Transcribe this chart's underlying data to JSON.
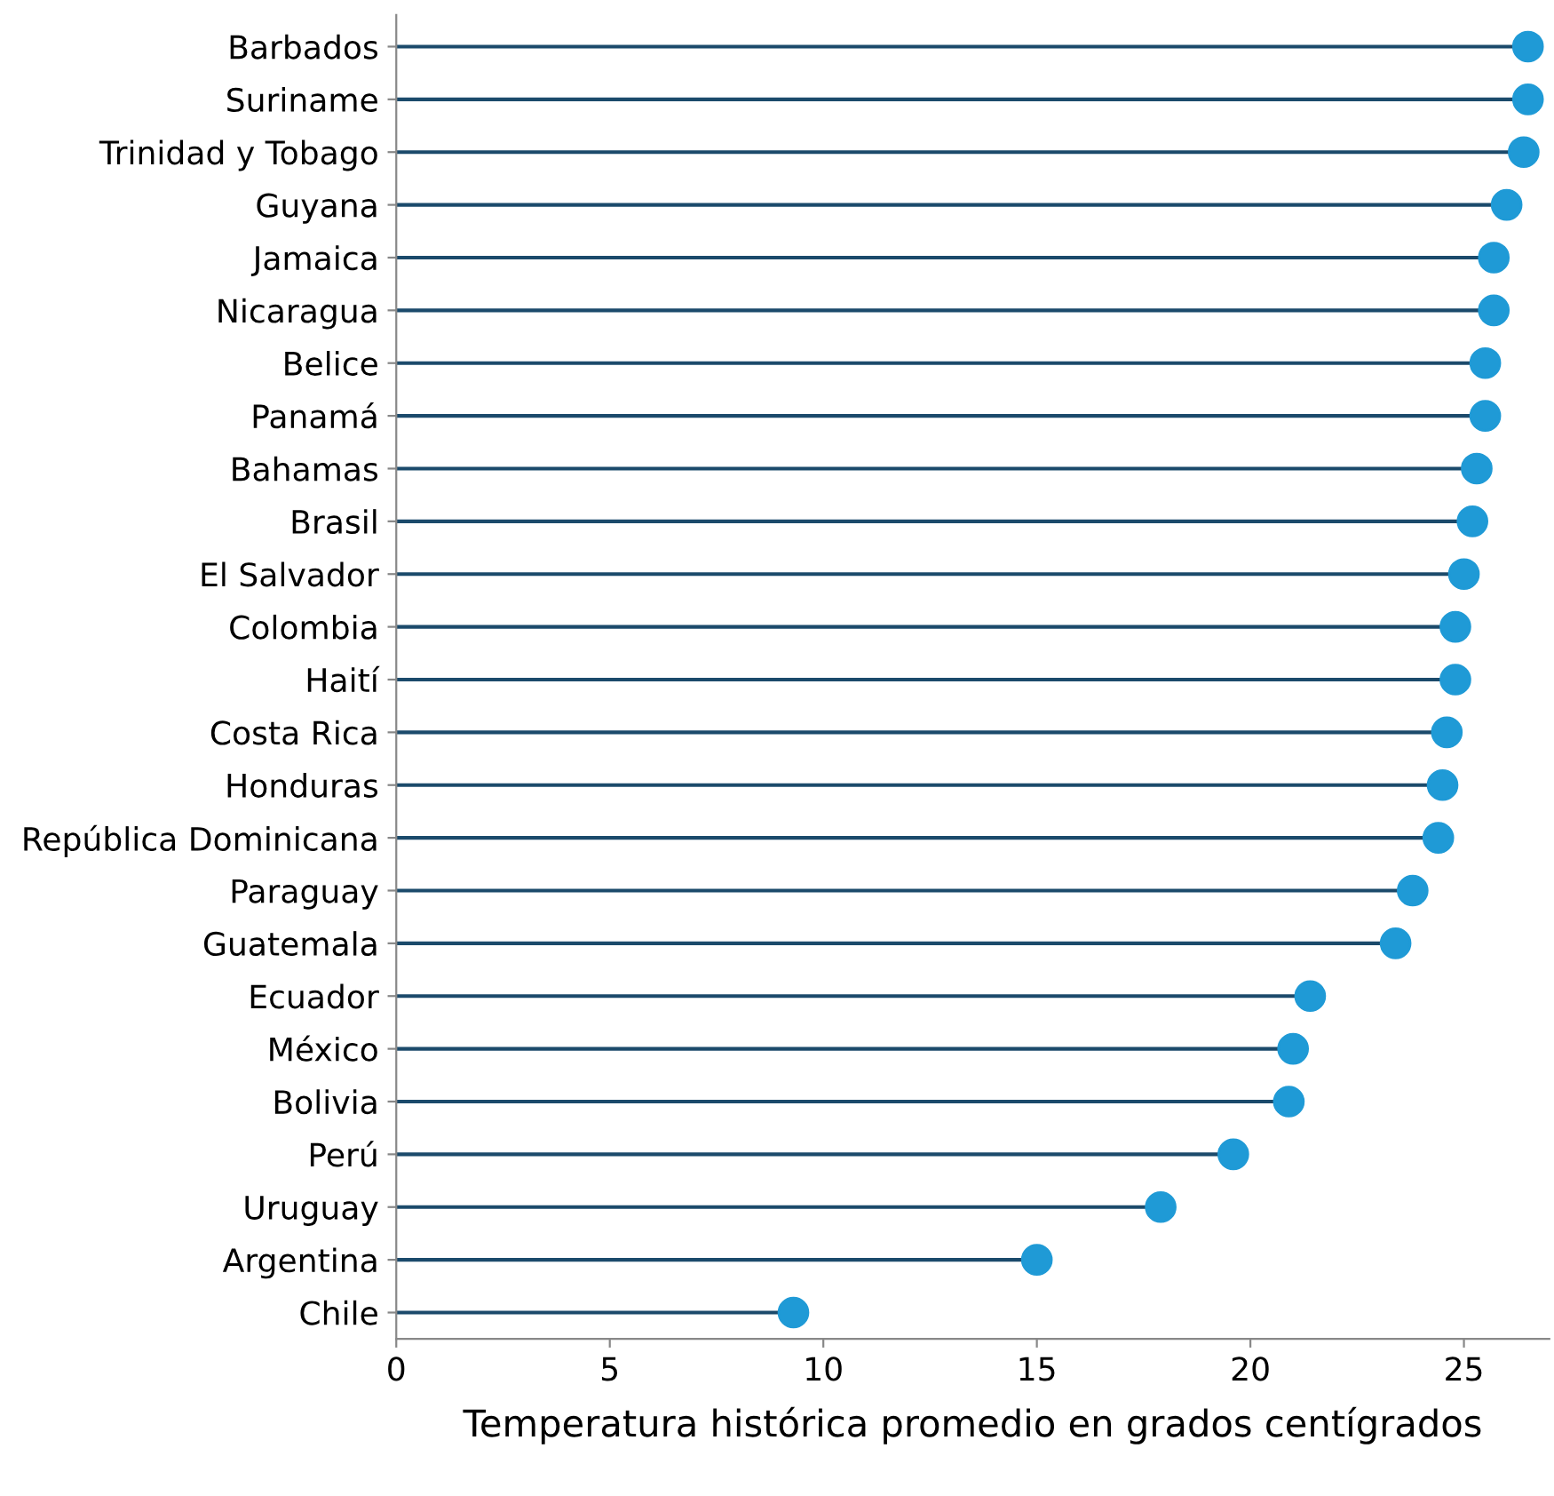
{
  "chart_data": {
    "type": "lollipop",
    "orientation": "horizontal",
    "xlabel": "Temperatura histórica promedio en grados centígrados",
    "categories": [
      "Barbados",
      "Suriname",
      "Trinidad y Tobago",
      "Guyana",
      "Jamaica",
      "Nicaragua",
      "Belice",
      "Panamá",
      "Bahamas",
      "Brasil",
      "El Salvador",
      "Colombia",
      "Haití",
      "Costa Rica",
      "Honduras",
      "República Dominicana",
      "Paraguay",
      "Guatemala",
      "Ecuador",
      "México",
      "Bolivia",
      "Perú",
      "Uruguay",
      "Argentina",
      "Chile"
    ],
    "series": [
      {
        "color": "#1f9ad6",
        "values": [
          26.5,
          26.5,
          26.4,
          26.0,
          25.7,
          25.7,
          25.5,
          25.5,
          25.3,
          25.2,
          25.0,
          24.8,
          24.8,
          24.6,
          24.5,
          24.4,
          23.8,
          23.4,
          21.4,
          21.0,
          20.9,
          19.6,
          17.9,
          15.0,
          9.3
        ]
      }
    ],
    "xlim": [
      0,
      27
    ],
    "xticks": [
      0,
      5,
      10,
      15,
      20,
      25
    ],
    "grid": false,
    "legend": false,
    "marker": "circle"
  }
}
